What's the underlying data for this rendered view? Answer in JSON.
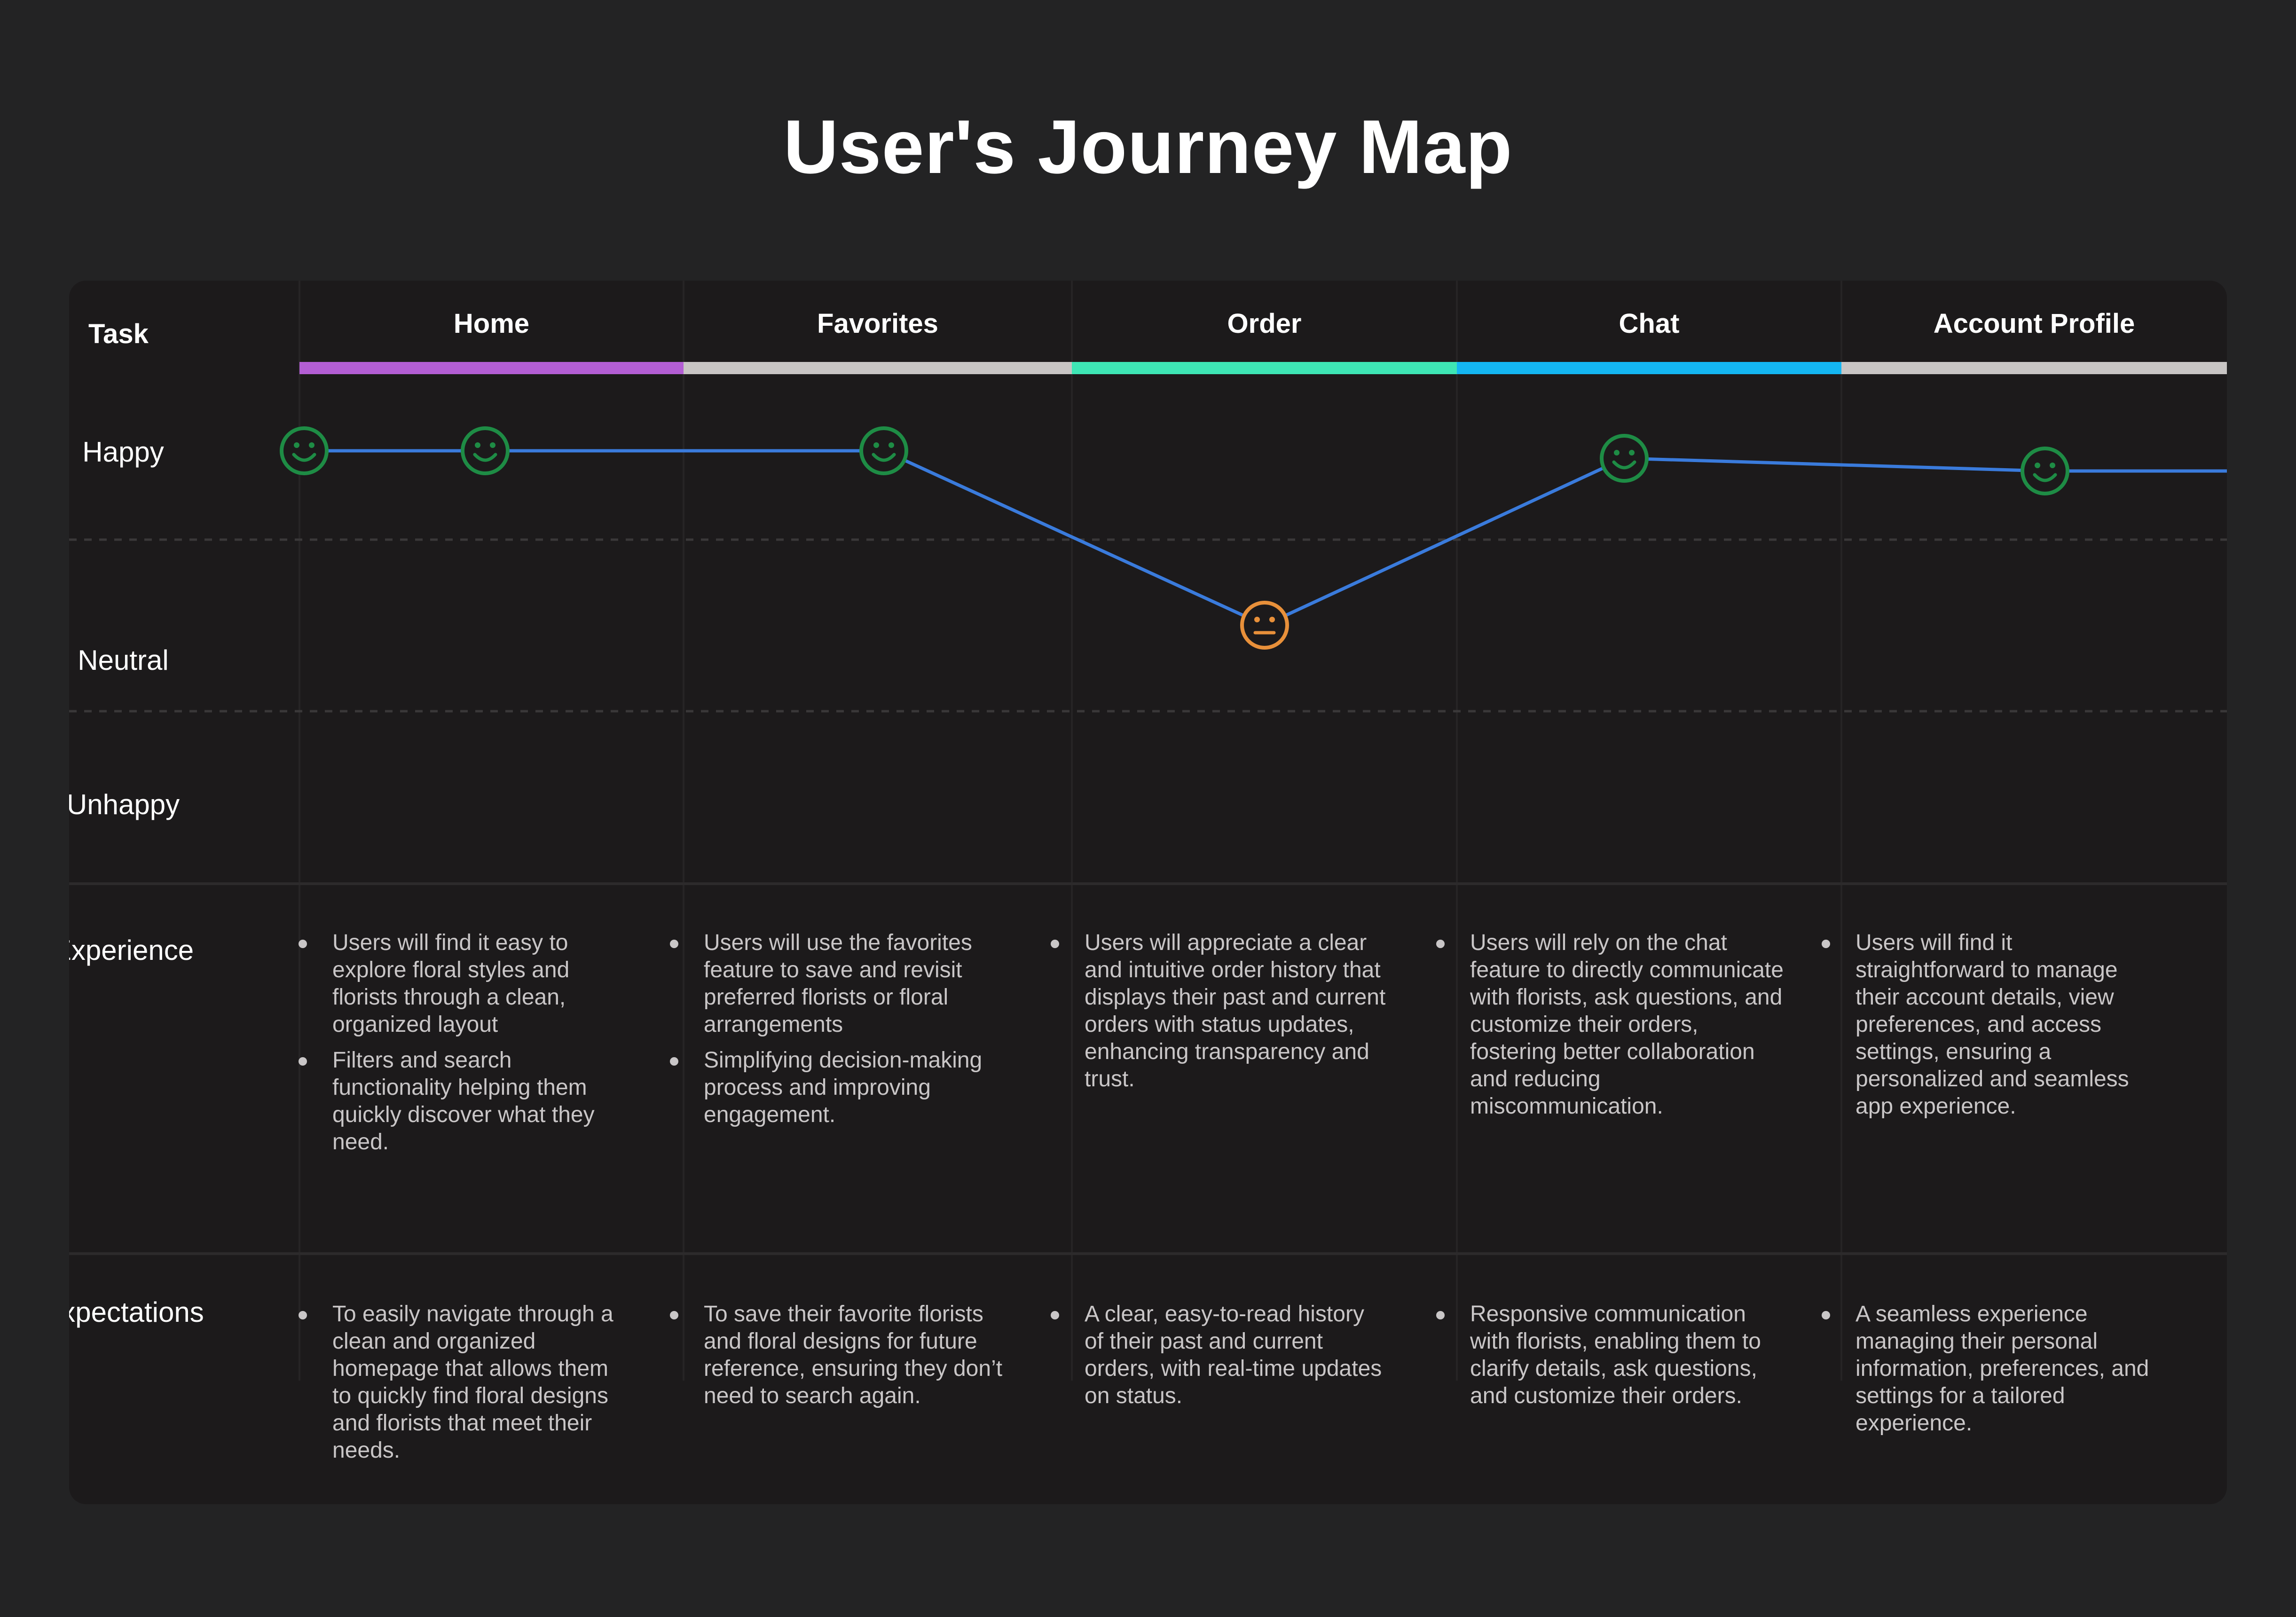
{
  "title": "User's Journey Map",
  "colors": {
    "background": "#232324",
    "card": "#1c1a1b",
    "line": "#3a7bdc",
    "happy": "#1e8c45",
    "neutral": "#e8903a"
  },
  "row_labels": {
    "task": "Task",
    "happy": "Happy",
    "neutral": "Neutral",
    "unhappy": "Unhappy",
    "experience": "Experience",
    "expectations": "Expectations"
  },
  "stages": [
    {
      "name": "Home",
      "color": "#b35ed4",
      "experience": [
        "Users will find it easy to explore floral styles and florists through a clean, organized layout",
        "Filters and search functionality helping them quickly discover what they need."
      ],
      "expectations": [
        "To easily navigate through a clean and organized homepage that allows them to quickly find floral designs and florists that meet their needs."
      ]
    },
    {
      "name": "Favorites",
      "color": "#c8c5c4",
      "experience": [
        "Users will use the favorites feature to save and revisit preferred florists or floral arrangements",
        "Simplifying decision-making process and improving engagement."
      ],
      "expectations": [
        "To save their favorite florists and floral designs for future reference, ensuring they don’t need to search again."
      ]
    },
    {
      "name": "Order",
      "color": "#3ee6b5",
      "experience": [
        "Users will appreciate a clear and intuitive order history that displays their past and current orders with status updates, enhancing transparency and trust."
      ],
      "expectations": [
        "A clear, easy-to-read history of their past and current orders, with real-time updates on status."
      ]
    },
    {
      "name": "Chat",
      "color": "#14b6f2",
      "experience": [
        "Users will rely on the chat feature to directly communicate with florists, ask questions, and customize their orders, fostering better collaboration and reducing miscommunication."
      ],
      "expectations": [
        " Responsive communication with florists, enabling them to clarify details, ask questions, and customize their orders."
      ]
    },
    {
      "name": "Account Profile",
      "color": "#c8c5c4",
      "experience": [
        "Users will find it straightforward to manage their account details, view preferences, and access settings, ensuring a personalized and seamless app experience."
      ],
      "expectations": [
        "A seamless experience managing their personal information, preferences, and settings for a tailored experience."
      ]
    }
  ],
  "emotion_points": [
    {
      "stage": "Home",
      "emotion": "happy",
      "icon": "smiley-face-icon"
    },
    {
      "stage": "Home",
      "emotion": "happy",
      "icon": "smiley-face-icon"
    },
    {
      "stage": "Favorites",
      "emotion": "happy",
      "icon": "smiley-face-icon"
    },
    {
      "stage": "Order",
      "emotion": "neutral",
      "icon": "neutral-face-icon"
    },
    {
      "stage": "Chat",
      "emotion": "happy",
      "icon": "smiley-face-icon"
    },
    {
      "stage": "Account Profile",
      "emotion": "happy",
      "icon": "smiley-face-icon"
    }
  ]
}
